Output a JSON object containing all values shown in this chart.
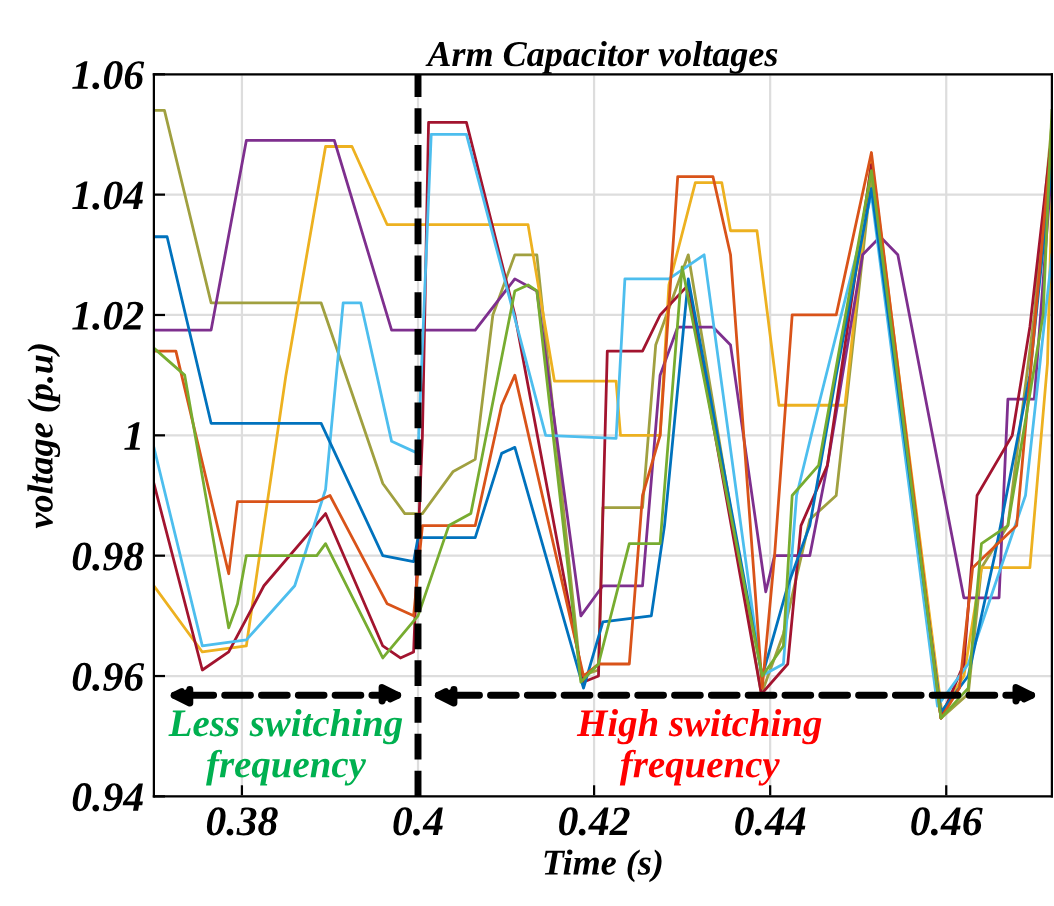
{
  "chart_data": {
    "type": "line",
    "title": "Arm Capacitor voltages",
    "xlabel": "Time (s)",
    "ylabel": "voltage (p.u)",
    "xlim": [
      0.37,
      0.472
    ],
    "xticks": [
      0.38,
      0.4,
      0.42,
      0.44,
      0.46
    ],
    "ylim": [
      0.94,
      1.06
    ],
    "yticks": [
      0.94,
      0.96,
      0.98,
      1,
      1.02,
      1.04,
      1.06
    ],
    "grid": true,
    "line_style": "solid",
    "ref_lines": [
      {
        "axis": "x",
        "value": 0.4,
        "color": "#000000",
        "line_style": "dashed"
      }
    ],
    "annotations": [
      "Less switching\nfrequency",
      "High switching\nfrequency"
    ],
    "series": [
      {
        "color": "#a0a040",
        "x": [
          0.37,
          0.3712,
          0.3765,
          0.389,
          0.396,
          0.3985,
          0.4005,
          0.404,
          0.4065,
          0.4085,
          0.411,
          0.4135,
          0.4185,
          0.4205,
          0.421,
          0.4255,
          0.427,
          0.4307,
          0.439,
          0.4415,
          0.4445,
          0.4475,
          0.4515,
          0.4594,
          0.4625,
          0.464,
          0.467,
          0.47,
          0.472
        ],
        "values": [
          1.054,
          1.054,
          1.022,
          1.022,
          0.992,
          0.987,
          0.987,
          0.994,
          0.996,
          1.02,
          1.03,
          1.03,
          0.96,
          0.961,
          0.988,
          0.988,
          1.015,
          1.03,
          0.957,
          0.967,
          0.986,
          0.99,
          1.043,
          0.953,
          0.957,
          0.978,
          0.985,
          1.02,
          1.052
        ]
      },
      {
        "color": "#edb120",
        "x": [
          0.37,
          0.3755,
          0.3805,
          0.385,
          0.3895,
          0.3925,
          0.3965,
          0.4125,
          0.4155,
          0.4225,
          0.423,
          0.4275,
          0.4285,
          0.4315,
          0.4345,
          0.4355,
          0.4385,
          0.441,
          0.4485,
          0.4515,
          0.4595,
          0.462,
          0.464,
          0.4695,
          0.4715,
          0.472
        ],
        "values": [
          0.975,
          0.964,
          0.965,
          1.01,
          1.048,
          1.048,
          1.035,
          1.035,
          1.009,
          1.009,
          1.0,
          1.0,
          1.025,
          1.042,
          1.042,
          1.034,
          1.034,
          1.005,
          1.005,
          1.046,
          0.954,
          0.96,
          0.978,
          0.978,
          1.012,
          1.04
        ]
      },
      {
        "color": "#7e2f8e",
        "x": [
          0.37,
          0.3765,
          0.3805,
          0.3905,
          0.397,
          0.4065,
          0.411,
          0.4135,
          0.4185,
          0.421,
          0.4255,
          0.4275,
          0.4295,
          0.4335,
          0.4355,
          0.4395,
          0.4405,
          0.4445,
          0.4465,
          0.4505,
          0.4525,
          0.4545,
          0.462,
          0.466,
          0.467,
          0.47,
          0.472
        ],
        "values": [
          1.0175,
          1.0175,
          1.049,
          1.049,
          1.0175,
          1.0175,
          1.026,
          1.024,
          0.97,
          0.975,
          0.975,
          1.01,
          1.018,
          1.018,
          1.015,
          0.974,
          0.98,
          0.98,
          0.995,
          1.03,
          1.033,
          1.03,
          0.973,
          0.973,
          1.006,
          1.006,
          1.045
        ]
      },
      {
        "color": "#a2142f",
        "x": [
          0.37,
          0.3755,
          0.3785,
          0.3825,
          0.3895,
          0.396,
          0.398,
          0.3995,
          0.4005,
          0.4012,
          0.4055,
          0.411,
          0.4188,
          0.4205,
          0.4215,
          0.4255,
          0.4275,
          0.4307,
          0.439,
          0.442,
          0.4435,
          0.4465,
          0.4515,
          0.4594,
          0.462,
          0.4635,
          0.4675,
          0.4695,
          0.472
        ],
        "values": [
          0.992,
          0.961,
          0.964,
          0.975,
          0.987,
          0.965,
          0.963,
          0.964,
          1.0,
          1.052,
          1.052,
          1.02,
          0.959,
          0.96,
          1.014,
          1.014,
          1.02,
          1.025,
          0.957,
          0.962,
          0.985,
          0.995,
          1.045,
          0.953,
          0.962,
          0.99,
          1.0,
          1.018,
          1.05
        ]
      },
      {
        "color": "#4dbeee",
        "x": [
          0.37,
          0.3755,
          0.3805,
          0.386,
          0.3895,
          0.3915,
          0.3935,
          0.397,
          0.4,
          0.4015,
          0.4055,
          0.4145,
          0.4225,
          0.4235,
          0.4285,
          0.4325,
          0.439,
          0.4415,
          0.443,
          0.4455,
          0.4515,
          0.459,
          0.4625,
          0.4655,
          0.469,
          0.472
        ],
        "values": [
          0.998,
          0.965,
          0.966,
          0.975,
          0.991,
          1.022,
          1.022,
          0.999,
          0.997,
          1.05,
          1.05,
          1.0,
          0.9995,
          1.026,
          1.026,
          1.03,
          0.96,
          0.962,
          0.99,
          1.005,
          1.04,
          0.955,
          0.962,
          0.975,
          0.99,
          1.03
        ]
      },
      {
        "color": "#0072bd",
        "x": [
          0.37,
          0.3715,
          0.3765,
          0.389,
          0.396,
          0.3995,
          0.4,
          0.4065,
          0.4095,
          0.411,
          0.4188,
          0.421,
          0.4265,
          0.428,
          0.4307,
          0.4391,
          0.442,
          0.4445,
          0.4475,
          0.4515,
          0.4594,
          0.4625,
          0.4655,
          0.4695,
          0.472
        ],
        "values": [
          1.033,
          1.033,
          1.002,
          1.002,
          0.98,
          0.979,
          0.983,
          0.983,
          0.997,
          0.998,
          0.958,
          0.969,
          0.97,
          0.985,
          1.026,
          0.96,
          0.975,
          0.985,
          1.01,
          1.041,
          0.954,
          0.96,
          0.98,
          1.01,
          1.045
        ]
      },
      {
        "color": "#d95319",
        "x": [
          0.37,
          0.3725,
          0.3785,
          0.3795,
          0.3885,
          0.39,
          0.3965,
          0.3995,
          0.4005,
          0.4065,
          0.4095,
          0.411,
          0.4188,
          0.4205,
          0.424,
          0.4255,
          0.4275,
          0.4295,
          0.4335,
          0.4355,
          0.4391,
          0.4405,
          0.4425,
          0.4475,
          0.4515,
          0.4594,
          0.4615,
          0.463,
          0.468,
          0.472
        ],
        "values": [
          1.014,
          1.014,
          0.977,
          0.989,
          0.989,
          0.99,
          0.972,
          0.97,
          0.985,
          0.985,
          1.005,
          1.01,
          0.96,
          0.962,
          0.962,
          0.99,
          1.0,
          1.043,
          1.043,
          1.03,
          0.958,
          0.98,
          1.02,
          1.02,
          1.047,
          0.953,
          0.958,
          0.978,
          0.985,
          1.05
        ]
      },
      {
        "color": "#77ac30",
        "x": [
          0.37,
          0.3735,
          0.3785,
          0.3795,
          0.3805,
          0.3885,
          0.3895,
          0.396,
          0.4,
          0.4035,
          0.406,
          0.411,
          0.4125,
          0.4135,
          0.4185,
          0.4205,
          0.424,
          0.4275,
          0.43,
          0.4391,
          0.4415,
          0.4425,
          0.4455,
          0.4515,
          0.4594,
          0.4625,
          0.464,
          0.467,
          0.471,
          0.472
        ],
        "values": [
          1.0145,
          1.01,
          0.968,
          0.972,
          0.98,
          0.98,
          0.982,
          0.963,
          0.97,
          0.985,
          0.987,
          1.024,
          1.025,
          1.024,
          0.959,
          0.962,
          0.982,
          0.982,
          1.028,
          0.96,
          0.965,
          0.99,
          0.995,
          1.044,
          0.953,
          0.958,
          0.982,
          0.985,
          1.02,
          1.054
        ]
      }
    ]
  }
}
